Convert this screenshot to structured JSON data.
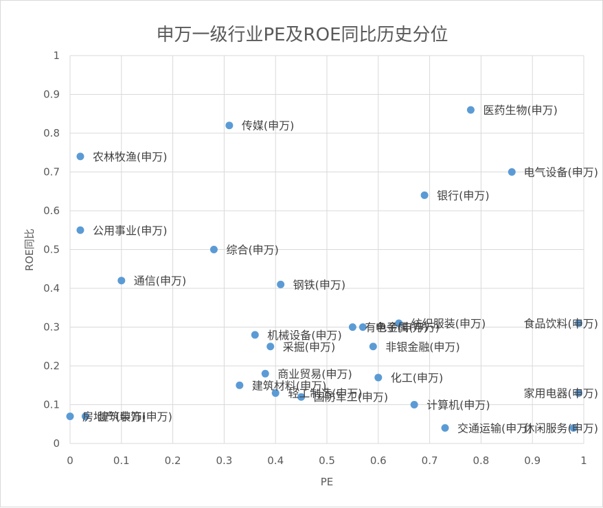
{
  "chart_data": {
    "type": "scatter",
    "title": "申万一级行业PE及ROE同比历史分位",
    "xlabel": "PE",
    "ylabel": "ROE同比",
    "xlim": [
      0,
      1
    ],
    "ylim": [
      0,
      1
    ],
    "x_ticks": [
      "0",
      "0.1",
      "0.2",
      "0.3",
      "0.4",
      "0.5",
      "0.6",
      "0.7",
      "0.8",
      "0.9",
      "1"
    ],
    "y_ticks": [
      "0",
      "0.1",
      "0.2",
      "0.3",
      "0.4",
      "0.5",
      "0.6",
      "0.7",
      "0.8",
      "0.9",
      "1"
    ],
    "grid": true,
    "marker_color": "#5b9bd5",
    "points": [
      {
        "label": "医药生物(申万)",
        "x": 0.78,
        "y": 0.86
      },
      {
        "label": "传媒(申万)",
        "x": 0.31,
        "y": 0.82
      },
      {
        "label": "农林牧渔(申万)",
        "x": 0.02,
        "y": 0.74
      },
      {
        "label": "电气设备(申万)",
        "x": 0.86,
        "y": 0.7
      },
      {
        "label": "银行(申万)",
        "x": 0.69,
        "y": 0.64
      },
      {
        "label": "公用事业(申万)",
        "x": 0.02,
        "y": 0.55
      },
      {
        "label": "综合(申万)",
        "x": 0.28,
        "y": 0.5
      },
      {
        "label": "通信(申万)",
        "x": 0.1,
        "y": 0.42
      },
      {
        "label": "钢铁(申万)",
        "x": 0.41,
        "y": 0.41
      },
      {
        "label": "食品饮料(申万)",
        "x": 0.99,
        "y": 0.31
      },
      {
        "label": "纺织服装(申万)",
        "x": 0.64,
        "y": 0.31
      },
      {
        "label": "有色金属(申万)",
        "x": 0.55,
        "y": 0.3
      },
      {
        "label": "电子(申万)",
        "x": 0.57,
        "y": 0.3
      },
      {
        "label": "机械设备(申万)",
        "x": 0.36,
        "y": 0.28
      },
      {
        "label": "采掘(申万)",
        "x": 0.39,
        "y": 0.25
      },
      {
        "label": "非银金融(申万)",
        "x": 0.59,
        "y": 0.25
      },
      {
        "label": "商业贸易(申万)",
        "x": 0.38,
        "y": 0.18
      },
      {
        "label": "化工(申万)",
        "x": 0.6,
        "y": 0.17
      },
      {
        "label": "建筑材料(申万)",
        "x": 0.33,
        "y": 0.15
      },
      {
        "label": "家用电器(申万)",
        "x": 0.99,
        "y": 0.13
      },
      {
        "label": "轻工制造(申万)",
        "x": 0.4,
        "y": 0.13
      },
      {
        "label": "国防军工(申万)",
        "x": 0.45,
        "y": 0.12
      },
      {
        "label": "计算机(申万)",
        "x": 0.67,
        "y": 0.1
      },
      {
        "label": "房地产(申万)",
        "x": 0.0,
        "y": 0.07
      },
      {
        "label": "建筑装饰(申万)",
        "x": 0.03,
        "y": 0.07
      },
      {
        "label": "交通运输(申万)",
        "x": 0.73,
        "y": 0.04
      },
      {
        "label": "休闲服务(申万)",
        "x": 0.98,
        "y": 0.04
      }
    ]
  }
}
